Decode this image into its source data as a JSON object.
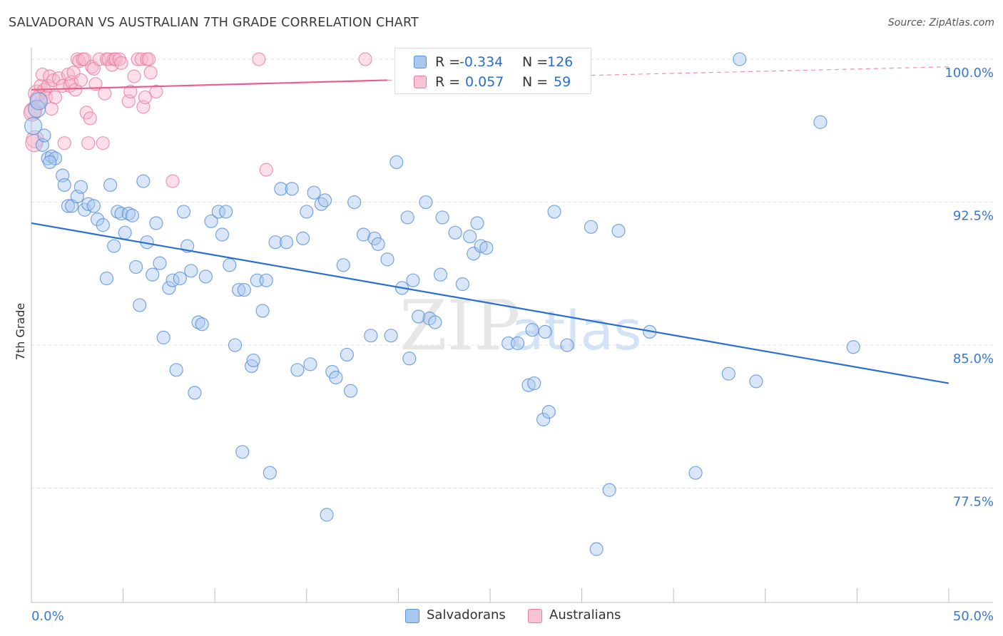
{
  "header": {
    "title": "SALVADORAN VS AUSTRALIAN 7TH GRADE CORRELATION CHART",
    "source": "Source: ZipAtlas.com"
  },
  "legend": {
    "r_label": "R =",
    "n_label": "N =",
    "rows": [
      {
        "name": "Salvadorans",
        "r": "-0.334",
        "n": "126"
      },
      {
        "name": "Australians",
        "r": "0.057",
        "n": "59"
      }
    ]
  },
  "bottom_legend": {
    "salvadorans": "Salvadorans",
    "australians": "Australians"
  },
  "watermark": {
    "zip": "ZIP",
    "atlas": "atlas"
  },
  "colors": {
    "blue_fill": "#a8c8f0",
    "blue_stroke": "#5a90d8",
    "blue_line": "#2a6fd0",
    "pink_fill": "#f8b8cc",
    "pink_stroke": "#e87ea0",
    "pink_line": "#e8608a",
    "tick_label": "#3a78d0",
    "value_blue": "#2a6fd0"
  },
  "chart_data": {
    "type": "scatter",
    "title": "SALVADORAN VS AUSTRALIAN 7TH GRADE CORRELATION CHART",
    "xlabel": "",
    "ylabel": "7th Grade",
    "xlim": [
      0,
      50
    ],
    "ylim": [
      71.5,
      100.6
    ],
    "x_tick_labels": [
      "0.0%",
      "50.0%"
    ],
    "y_ticks": [
      {
        "value": 100.0,
        "label": "100.0%"
      },
      {
        "value": 92.5,
        "label": "92.5%"
      },
      {
        "value": 85.0,
        "label": "85.0%"
      },
      {
        "value": 77.5,
        "label": "77.5%"
      }
    ],
    "grid": true,
    "series": [
      {
        "name": "Salvadorans",
        "r": -0.334,
        "n": 126,
        "trend": {
          "x0": 0,
          "y0": 91.4,
          "x1": 50,
          "y1": 83.0
        },
        "points": [
          [
            0.1,
            96.5
          ],
          [
            0.3,
            97.4
          ],
          [
            0.6,
            95.5
          ],
          [
            0.9,
            94.8
          ],
          [
            1.1,
            94.9
          ],
          [
            1.3,
            94.8
          ],
          [
            1.7,
            93.9
          ],
          [
            1.8,
            93.4
          ],
          [
            2.0,
            92.3
          ],
          [
            2.2,
            92.3
          ],
          [
            2.5,
            92.8
          ],
          [
            2.7,
            93.3
          ],
          [
            2.9,
            92.1
          ],
          [
            3.1,
            92.4
          ],
          [
            3.4,
            92.3
          ],
          [
            3.6,
            91.6
          ],
          [
            3.9,
            91.3
          ],
          [
            4.1,
            88.5
          ],
          [
            4.3,
            93.4
          ],
          [
            4.5,
            90.2
          ],
          [
            4.7,
            92.0
          ],
          [
            4.9,
            91.9
          ],
          [
            5.1,
            90.9
          ],
          [
            5.3,
            91.9
          ],
          [
            5.5,
            91.8
          ],
          [
            5.7,
            89.1
          ],
          [
            5.9,
            87.1
          ],
          [
            6.1,
            93.6
          ],
          [
            6.3,
            90.4
          ],
          [
            6.6,
            88.7
          ],
          [
            6.8,
            91.4
          ],
          [
            7.0,
            89.3
          ],
          [
            7.2,
            85.4
          ],
          [
            7.5,
            88.0
          ],
          [
            7.7,
            88.4
          ],
          [
            7.9,
            83.7
          ],
          [
            8.1,
            88.5
          ],
          [
            8.3,
            92.0
          ],
          [
            8.5,
            90.2
          ],
          [
            8.7,
            88.9
          ],
          [
            8.9,
            82.5
          ],
          [
            9.1,
            86.2
          ],
          [
            9.3,
            86.1
          ],
          [
            9.5,
            88.6
          ],
          [
            9.8,
            91.5
          ],
          [
            10.2,
            92.0
          ],
          [
            10.4,
            90.8
          ],
          [
            10.6,
            92.0
          ],
          [
            10.8,
            89.2
          ],
          [
            11.1,
            85.0
          ],
          [
            11.3,
            87.9
          ],
          [
            11.5,
            79.4
          ],
          [
            11.6,
            87.9
          ],
          [
            12.0,
            83.9
          ],
          [
            12.1,
            84.2
          ],
          [
            12.3,
            88.4
          ],
          [
            12.6,
            86.8
          ],
          [
            12.8,
            88.4
          ],
          [
            13.0,
            78.3
          ],
          [
            13.3,
            90.4
          ],
          [
            13.6,
            93.2
          ],
          [
            13.9,
            90.4
          ],
          [
            14.2,
            93.2
          ],
          [
            14.5,
            83.7
          ],
          [
            14.8,
            90.6
          ],
          [
            15.0,
            92.0
          ],
          [
            15.2,
            84.0
          ],
          [
            15.4,
            93.0
          ],
          [
            15.8,
            92.4
          ],
          [
            16.0,
            92.6
          ],
          [
            16.1,
            76.1
          ],
          [
            16.4,
            83.6
          ],
          [
            16.6,
            83.3
          ],
          [
            17.0,
            89.2
          ],
          [
            17.2,
            84.5
          ],
          [
            17.4,
            82.6
          ],
          [
            17.6,
            92.5
          ],
          [
            18.1,
            90.8
          ],
          [
            18.5,
            85.5
          ],
          [
            18.7,
            90.6
          ],
          [
            18.9,
            90.3
          ],
          [
            19.4,
            89.5
          ],
          [
            19.6,
            85.5
          ],
          [
            19.9,
            94.6
          ],
          [
            20.2,
            88.0
          ],
          [
            20.5,
            91.7
          ],
          [
            20.6,
            84.3
          ],
          [
            20.8,
            88.4
          ],
          [
            21.1,
            86.5
          ],
          [
            21.5,
            92.5
          ],
          [
            21.7,
            86.4
          ],
          [
            22.0,
            86.2
          ],
          [
            22.3,
            88.7
          ],
          [
            22.4,
            91.7
          ],
          [
            23.1,
            90.9
          ],
          [
            23.5,
            88.2
          ],
          [
            23.9,
            90.7
          ],
          [
            24.1,
            89.8
          ],
          [
            24.3,
            91.4
          ],
          [
            24.5,
            90.2
          ],
          [
            24.8,
            90.1
          ],
          [
            25.6,
            100.0
          ],
          [
            26.0,
            85.1
          ],
          [
            26.5,
            85.1
          ],
          [
            27.1,
            82.9
          ],
          [
            27.3,
            85.8
          ],
          [
            27.4,
            83.0
          ],
          [
            27.9,
            81.1
          ],
          [
            28.0,
            85.7
          ],
          [
            28.2,
            81.5
          ],
          [
            28.5,
            92.0
          ],
          [
            29.2,
            85.0
          ],
          [
            30.5,
            91.2
          ],
          [
            30.8,
            74.3
          ],
          [
            31.5,
            77.4
          ],
          [
            32.0,
            91.0
          ],
          [
            33.7,
            85.7
          ],
          [
            36.2,
            78.3
          ],
          [
            38.0,
            83.5
          ],
          [
            38.6,
            100.0
          ],
          [
            39.5,
            83.1
          ],
          [
            43.0,
            96.7
          ],
          [
            0.4,
            97.8
          ],
          [
            0.7,
            96.0
          ],
          [
            1.0,
            94.6
          ],
          [
            44.8,
            84.9
          ]
        ]
      },
      {
        "name": "Australians",
        "r": 0.057,
        "n": 59,
        "trend": {
          "x0": 0,
          "y0": 98.4,
          "x1": 19.4,
          "y1": 98.9,
          "x_ext": 50,
          "y_ext": 99.6
        },
        "points": [
          [
            0.1,
            97.3
          ],
          [
            0.2,
            95.8
          ],
          [
            0.3,
            98.2
          ],
          [
            0.4,
            97.9
          ],
          [
            0.5,
            98.6
          ],
          [
            0.6,
            99.2
          ],
          [
            0.7,
            98.4
          ],
          [
            0.8,
            98.0
          ],
          [
            0.9,
            98.6
          ],
          [
            1.0,
            99.1
          ],
          [
            1.1,
            97.4
          ],
          [
            1.2,
            98.9
          ],
          [
            1.3,
            98.0
          ],
          [
            1.5,
            99.0
          ],
          [
            1.7,
            98.6
          ],
          [
            1.8,
            95.6
          ],
          [
            2.0,
            99.2
          ],
          [
            2.1,
            98.6
          ],
          [
            2.2,
            98.8
          ],
          [
            2.3,
            99.3
          ],
          [
            2.4,
            98.4
          ],
          [
            2.5,
            100.0
          ],
          [
            2.6,
            99.9
          ],
          [
            2.7,
            98.9
          ],
          [
            2.8,
            100.0
          ],
          [
            2.9,
            100.0
          ],
          [
            3.0,
            97.2
          ],
          [
            3.1,
            95.6
          ],
          [
            3.2,
            96.9
          ],
          [
            3.3,
            99.6
          ],
          [
            3.4,
            99.5
          ],
          [
            3.5,
            98.7
          ],
          [
            3.7,
            100.0
          ],
          [
            3.9,
            95.6
          ],
          [
            4.0,
            98.2
          ],
          [
            4.1,
            100.0
          ],
          [
            4.2,
            100.0
          ],
          [
            4.4,
            99.7
          ],
          [
            4.5,
            100.0
          ],
          [
            4.6,
            100.0
          ],
          [
            4.8,
            100.0
          ],
          [
            4.9,
            99.8
          ],
          [
            5.3,
            97.8
          ],
          [
            5.4,
            98.3
          ],
          [
            5.6,
            99.1
          ],
          [
            5.8,
            100.0
          ],
          [
            6.0,
            100.0
          ],
          [
            6.1,
            97.5
          ],
          [
            6.2,
            98.0
          ],
          [
            6.3,
            100.0
          ],
          [
            6.4,
            100.0
          ],
          [
            6.5,
            99.3
          ],
          [
            6.8,
            98.3
          ],
          [
            7.7,
            93.6
          ],
          [
            12.4,
            100.0
          ],
          [
            12.8,
            94.2
          ],
          [
            18.2,
            100.0
          ],
          [
            0.05,
            97.2
          ],
          [
            0.15,
            95.6
          ]
        ]
      }
    ]
  }
}
